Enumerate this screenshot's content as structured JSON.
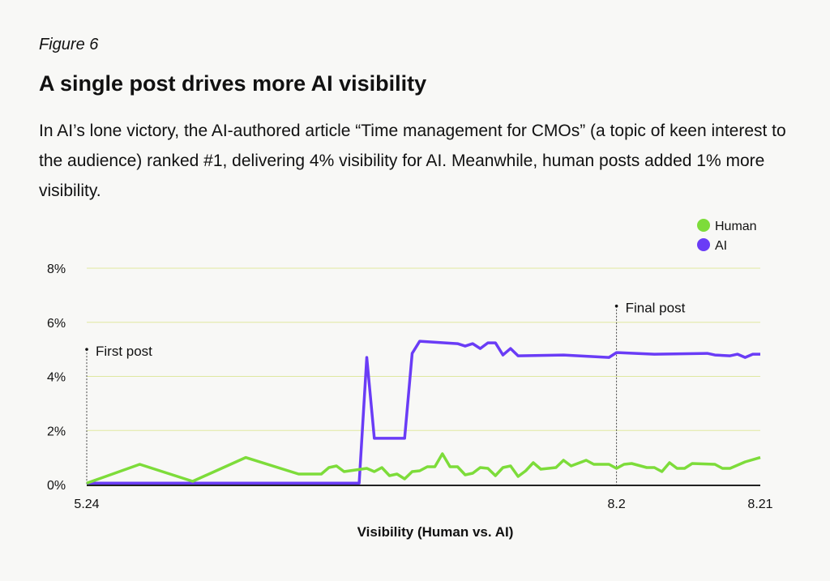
{
  "figure_label": "Figure 6",
  "title": "A single post drives more AI visibility",
  "subtitle": "In AI’s lone victory, the AI-authored article “Time management for CMOs” (a topic of keen interest to the audience) ranked #1, delivering 4% visibility for AI. Meanwhile, human posts added 1% more visibility.",
  "chart_data": {
    "type": "line",
    "title": "A single post drives more AI visibility",
    "xlabel": "Visibility (Human vs. AI)",
    "ylabel": "",
    "x_ticks": [
      "5.24",
      "8.2",
      "8.21"
    ],
    "x_range": [
      "5.24",
      "8.21"
    ],
    "y_ticks": [
      "0%",
      "2%",
      "4%",
      "6%",
      "8%"
    ],
    "ylim": [
      0,
      8
    ],
    "y_unit": "%",
    "grid": "horizontal",
    "legend_position": "top-right",
    "series": [
      {
        "name": "Human",
        "color": "#7ddc3a",
        "points": [
          [
            "5.24",
            0.05
          ],
          [
            "5.31",
            0.75
          ],
          [
            "6.7",
            0.12
          ],
          [
            "6.14",
            1.0
          ],
          [
            "6.21",
            0.39
          ],
          [
            "6.24",
            0.39
          ],
          [
            "6.25",
            0.63
          ],
          [
            "6.26",
            0.69
          ],
          [
            "6.27",
            0.48
          ],
          [
            "6.30",
            0.6
          ],
          [
            "7.1",
            0.48
          ],
          [
            "7.2",
            0.63
          ],
          [
            "7.3",
            0.33
          ],
          [
            "7.4",
            0.39
          ],
          [
            "7.5",
            0.21
          ],
          [
            "7.6",
            0.48
          ],
          [
            "7.7",
            0.51
          ],
          [
            "7.8",
            0.66
          ],
          [
            "7.9",
            0.66
          ],
          [
            "7.10",
            1.14
          ],
          [
            "7.11",
            0.66
          ],
          [
            "7.12",
            0.66
          ],
          [
            "7.13",
            0.36
          ],
          [
            "7.14",
            0.42
          ],
          [
            "7.15",
            0.63
          ],
          [
            "7.16",
            0.6
          ],
          [
            "7.17",
            0.33
          ],
          [
            "7.18",
            0.63
          ],
          [
            "7.19",
            0.69
          ],
          [
            "7.20",
            0.3
          ],
          [
            "7.21",
            0.51
          ],
          [
            "7.22",
            0.81
          ],
          [
            "7.23",
            0.57
          ],
          [
            "7.25",
            0.63
          ],
          [
            "7.26",
            0.9
          ],
          [
            "7.27",
            0.69
          ],
          [
            "7.29",
            0.9
          ],
          [
            "7.30",
            0.75
          ],
          [
            "8.1",
            0.75
          ],
          [
            "8.2",
            0.6
          ],
          [
            "8.3",
            0.75
          ],
          [
            "8.4",
            0.78
          ],
          [
            "8.6",
            0.63
          ],
          [
            "8.7",
            0.63
          ],
          [
            "8.8",
            0.48
          ],
          [
            "8.9",
            0.81
          ],
          [
            "8.10",
            0.6
          ],
          [
            "8.11",
            0.6
          ],
          [
            "8.12",
            0.78
          ],
          [
            "8.15",
            0.75
          ],
          [
            "8.16",
            0.6
          ],
          [
            "8.17",
            0.6
          ],
          [
            "8.19",
            0.84
          ],
          [
            "8.21",
            1.0
          ]
        ]
      },
      {
        "name": "AI",
        "color": "#6a3cf6",
        "points": [
          [
            "5.24",
            0.05
          ],
          [
            "6.29",
            0.05
          ],
          [
            "6.30",
            4.7
          ],
          [
            "7.1",
            1.71
          ],
          [
            "7.5",
            1.71
          ],
          [
            "7.6",
            4.85
          ],
          [
            "7.7",
            5.3
          ],
          [
            "7.12",
            5.21
          ],
          [
            "7.13",
            5.12
          ],
          [
            "7.14",
            5.21
          ],
          [
            "7.15",
            5.03
          ],
          [
            "7.16",
            5.24
          ],
          [
            "7.17",
            5.24
          ],
          [
            "7.18",
            4.79
          ],
          [
            "7.19",
            5.03
          ],
          [
            "7.20",
            4.76
          ],
          [
            "7.26",
            4.79
          ],
          [
            "8.1",
            4.7
          ],
          [
            "8.2",
            4.88
          ],
          [
            "8.7",
            4.82
          ],
          [
            "8.14",
            4.85
          ],
          [
            "8.15",
            4.79
          ],
          [
            "8.17",
            4.76
          ],
          [
            "8.18",
            4.82
          ],
          [
            "8.19",
            4.7
          ],
          [
            "8.20",
            4.82
          ],
          [
            "8.21",
            4.82
          ]
        ]
      }
    ],
    "annotations": [
      {
        "label": "First post",
        "x": "5.24",
        "y": 5.0
      },
      {
        "label": "Final post",
        "x": "8.2",
        "y": 6.6
      }
    ]
  }
}
